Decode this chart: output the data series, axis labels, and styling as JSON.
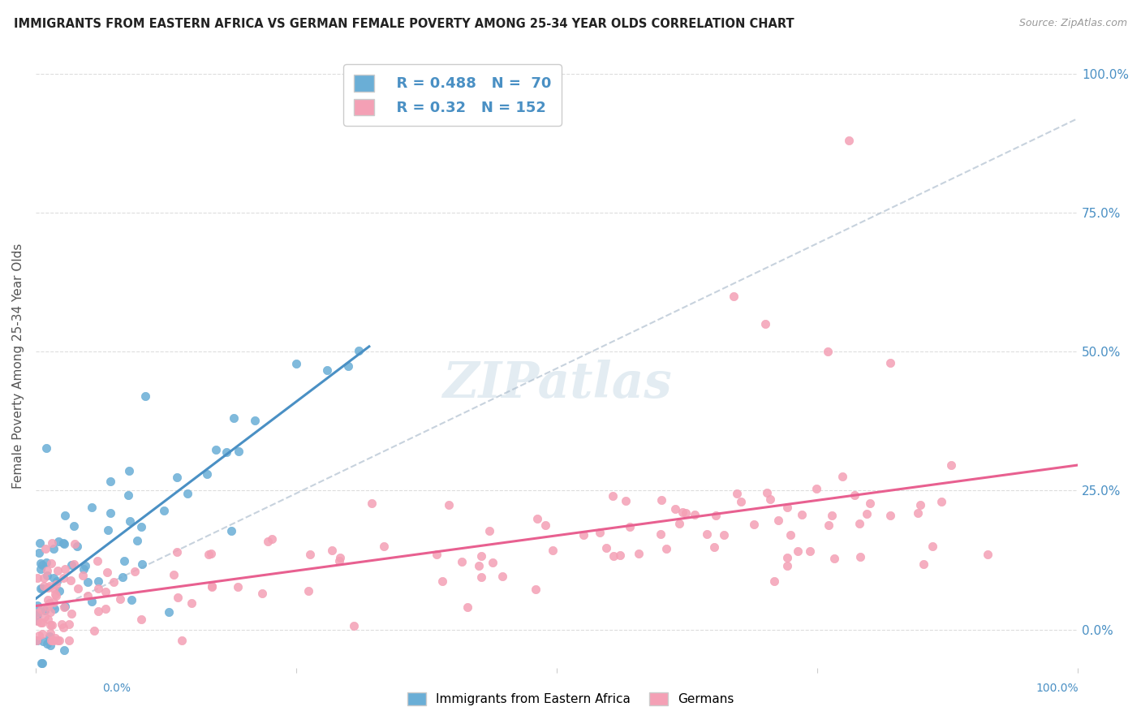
{
  "title": "IMMIGRANTS FROM EASTERN AFRICA VS GERMAN FEMALE POVERTY AMONG 25-34 YEAR OLDS CORRELATION CHART",
  "source": "Source: ZipAtlas.com",
  "ylabel": "Female Poverty Among 25-34 Year Olds",
  "blue_R": 0.488,
  "blue_N": 70,
  "pink_R": 0.32,
  "pink_N": 152,
  "blue_color": "#6aaed6",
  "pink_color": "#f4a0b5",
  "blue_line_color": "#4a90c4",
  "pink_line_color": "#e86090",
  "legend_label_blue": "Immigrants from Eastern Africa",
  "legend_label_pink": "Germans"
}
